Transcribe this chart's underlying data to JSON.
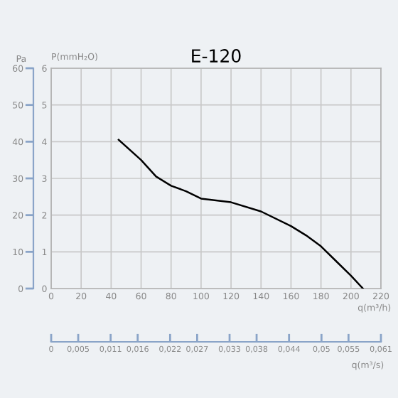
{
  "chart_data": {
    "type": "line",
    "title": "E-120",
    "xlabel": "q(m³/h)",
    "ylabel": "P(mmH₂O)",
    "y2label": "Pa",
    "x2label": "q(m³/s)",
    "series": [
      {
        "color": "#000000",
        "x": [
          45,
          60,
          70,
          80,
          90,
          100,
          120,
          140,
          160,
          170,
          180,
          190,
          200,
          208
        ],
        "values": [
          4.05,
          3.5,
          3.05,
          2.8,
          2.65,
          2.45,
          2.35,
          2.1,
          1.7,
          1.45,
          1.15,
          0.75,
          0.35,
          0.0
        ]
      }
    ],
    "xlim": [
      0,
      220
    ],
    "xticks": [
      0,
      20,
      40,
      60,
      80,
      100,
      120,
      140,
      160,
      180,
      200,
      220
    ],
    "ylim": [
      0,
      6
    ],
    "yticks": [
      0,
      1,
      2,
      3,
      4,
      5,
      6
    ],
    "y2lim": [
      0,
      60
    ],
    "y2ticks": [
      0,
      10,
      20,
      30,
      40,
      50,
      60
    ],
    "x2lim": [
      0,
      0.061
    ],
    "x2ticks": [
      {
        "value": 0,
        "label": "0"
      },
      {
        "value": 0.005,
        "label": "0,005"
      },
      {
        "value": 0.011,
        "label": "0,011"
      },
      {
        "value": 0.016,
        "label": "0,016"
      },
      {
        "value": 0.022,
        "label": "0,022"
      },
      {
        "value": 0.027,
        "label": "0,027"
      },
      {
        "value": 0.033,
        "label": "0,033"
      },
      {
        "value": 0.038,
        "label": "0,038"
      },
      {
        "value": 0.044,
        "label": "0,044"
      },
      {
        "value": 0.05,
        "label": "0,05"
      },
      {
        "value": 0.055,
        "label": "0,055"
      },
      {
        "value": 0.061,
        "label": "0,061"
      }
    ],
    "grid": true,
    "marker": "none",
    "line_style": "solid"
  }
}
